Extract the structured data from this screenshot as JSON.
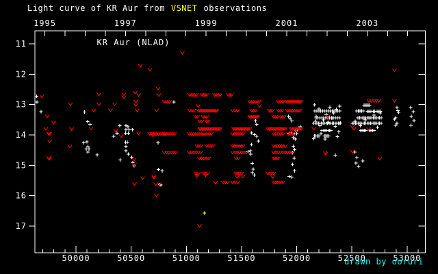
{
  "header": {
    "title_parts": [
      {
        "text": "Light curve of KR Aur from",
        "color": "#ffffff"
      },
      {
        "text": "VSNET",
        "color": "#ffff00"
      },
      {
        "text": "observations",
        "color": "#ffffff"
      }
    ]
  },
  "footer": {
    "credit": "drawn by ooruri",
    "color": "#00ffff"
  },
  "colors": {
    "background": "#000000",
    "frame": "#ffffff",
    "obs": "#ffffff",
    "limit": "#ff0000",
    "special": "#ffff00",
    "credit": "#00ffff"
  },
  "chart_data": {
    "type": "scatter",
    "label": "KR Aur (NLAD)",
    "x_axis": {
      "range": [
        49628,
        53165
      ],
      "bottom_major_ticks": [
        50000,
        50500,
        51000,
        51500,
        52000,
        52500,
        53000
      ],
      "bottom_tick_labels": [
        "50000",
        "50500",
        "51000",
        "51500",
        "52000",
        "52500",
        "53000"
      ],
      "bottom_minor_step": 100,
      "top_year_range": [
        1995,
        2004
      ],
      "top_year_tick_step": 0.5,
      "top_year_labels": [
        1995,
        1997,
        1999,
        2001,
        2003
      ],
      "jd_of_1995": 49718,
      "days_per_year": 365.25
    },
    "y_axis": {
      "ticks": [
        11,
        12,
        13,
        14,
        15,
        16,
        17
      ],
      "tick_labels": [
        "11",
        "12",
        "13",
        "14",
        "15",
        "16",
        "17"
      ],
      "range": [
        10.57,
        17.88
      ],
      "inverted": true
    },
    "series": [
      {
        "name": "positive observation",
        "marker": "plus",
        "color": "#ffffff",
        "points": [
          [
            49645,
            12.73
          ],
          [
            49648,
            12.92
          ],
          [
            49684,
            13.23
          ],
          [
            50070,
            14.26
          ],
          [
            50079,
            13.24
          ],
          [
            50093,
            14.46
          ],
          [
            50099,
            14.22
          ],
          [
            50104,
            13.56
          ],
          [
            50107,
            14.38
          ],
          [
            50107,
            14.56
          ],
          [
            50118,
            14.46
          ],
          [
            50128,
            13.65
          ],
          [
            50192,
            14.65
          ],
          [
            50341,
            14.05
          ],
          [
            50372,
            13.94
          ],
          [
            50397,
            13.69
          ],
          [
            50399,
            14.82
          ],
          [
            50451,
            13.94
          ],
          [
            50451,
            14.24
          ],
          [
            50454,
            13.69
          ],
          [
            50454,
            13.83
          ],
          [
            50454,
            14.37
          ],
          [
            50454,
            14.52
          ],
          [
            50465,
            14.24
          ],
          [
            50471,
            13.73
          ],
          [
            50475,
            13.94
          ],
          [
            50475,
            14.63
          ],
          [
            50479,
            13.83
          ],
          [
            50506,
            14.73
          ],
          [
            50513,
            13.83
          ],
          [
            50516,
            14.91
          ],
          [
            50526,
            15.01
          ],
          [
            50744,
            14.26
          ],
          [
            50748,
            15.14
          ],
          [
            50758,
            15.63
          ],
          [
            50770,
            15.65
          ],
          [
            50781,
            15.18
          ],
          [
            50886,
            12.92
          ],
          [
            51560,
            14.55
          ],
          [
            51581,
            14.52
          ],
          [
            51585,
            14.63
          ],
          [
            51591,
            13.93
          ],
          [
            51591,
            14.32
          ],
          [
            51595,
            14.94
          ],
          [
            51595,
            15.24
          ],
          [
            51606,
            15.13
          ],
          [
            51615,
            13.99
          ],
          [
            51615,
            15.32
          ],
          [
            51626,
            13.54
          ],
          [
            51636,
            13.65
          ],
          [
            51636,
            14.05
          ],
          [
            51651,
            14.2
          ],
          [
            51926,
            13.39
          ],
          [
            51932,
            13.94
          ],
          [
            51932,
            15.37
          ],
          [
            51940,
            13.45
          ],
          [
            51952,
            13.94
          ],
          [
            51955,
            15.39
          ],
          [
            51957,
            13.54
          ],
          [
            51961,
            14.59
          ],
          [
            51961,
            14.97
          ],
          [
            51967,
            14.09
          ],
          [
            51967,
            14.37
          ],
          [
            51977,
            13.95
          ],
          [
            51977,
            14.77
          ],
          [
            51982,
            14.48
          ],
          [
            51982,
            15.18
          ],
          [
            51988,
            14.14
          ],
          [
            51989,
            13.84
          ],
          [
            51998,
            13.95
          ],
          [
            52009,
            13.83
          ],
          [
            52030,
            13.73
          ],
          [
            52153,
            14.12
          ],
          [
            52160,
            13.01
          ],
          [
            52170,
            13.55
          ],
          [
            52175,
            13.39
          ],
          [
            52200,
            13.14
          ],
          [
            52210,
            13.7
          ],
          [
            52220,
            13.95
          ],
          [
            52240,
            13.5
          ],
          [
            52256,
            14.14
          ],
          [
            52265,
            13.33
          ],
          [
            52285,
            13.58
          ],
          [
            52300,
            13.08
          ],
          [
            52320,
            13.45
          ],
          [
            52335,
            13.28
          ],
          [
            52349,
            14.67
          ],
          [
            52350,
            13.72
          ],
          [
            52360,
            13.15
          ],
          [
            52368,
            14.06
          ],
          [
            52380,
            13.9
          ],
          [
            52390,
            13.05
          ],
          [
            52395,
            13.6
          ],
          [
            52525,
            14.56
          ],
          [
            52530,
            13.55
          ],
          [
            52535,
            14.93
          ],
          [
            52546,
            14.74
          ],
          [
            52560,
            15.04
          ],
          [
            52575,
            13.7
          ],
          [
            52597,
            14.86
          ],
          [
            52620,
            13.5
          ],
          [
            52700,
            13.35
          ],
          [
            52730,
            13.75
          ],
          [
            52755,
            13.28
          ],
          [
            52886,
            13.48
          ],
          [
            52896,
            13.43
          ],
          [
            52896,
            13.68
          ],
          [
            52907,
            13.1
          ],
          [
            52907,
            13.62
          ],
          [
            52917,
            13.2
          ],
          [
            52923,
            13.26
          ],
          [
            53031,
            13.1
          ],
          [
            53034,
            13.68
          ],
          [
            53037,
            13.39
          ],
          [
            53056,
            13.23
          ],
          [
            53062,
            13.53
          ]
        ],
        "runs": [
          [
            52165,
            52390,
            13.21,
            14
          ],
          [
            52175,
            52385,
            13.43,
            13
          ],
          [
            52155,
            52390,
            13.62,
            18
          ],
          [
            52230,
            52310,
            13.85,
            7
          ],
          [
            52160,
            52200,
            14.03,
            4
          ],
          [
            52250,
            52290,
            14.03,
            4
          ],
          [
            52610,
            52660,
            13.02,
            5
          ],
          [
            52545,
            52600,
            13.21,
            6
          ],
          [
            52640,
            52760,
            13.22,
            10
          ],
          [
            52555,
            52765,
            13.43,
            16
          ],
          [
            52504,
            52764,
            13.62,
            20
          ],
          [
            52580,
            52625,
            13.85,
            5
          ],
          [
            52660,
            52700,
            13.85,
            4
          ]
        ]
      },
      {
        "name": "fainter-than limit",
        "marker": "v",
        "color": "#ff0000",
        "points": [
          [
            49690,
            12.72
          ],
          [
            49727,
            13.8
          ],
          [
            49741,
            13.38
          ],
          [
            49752,
            13.95
          ],
          [
            49752,
            14.75
          ],
          [
            49757,
            14.78
          ],
          [
            49762,
            13.95
          ],
          [
            49762,
            14.2
          ],
          [
            49797,
            13.58
          ],
          [
            49943,
            14.37
          ],
          [
            49949,
            12.98
          ],
          [
            49959,
            13.8
          ],
          [
            50136,
            13.78
          ],
          [
            50161,
            13.19
          ],
          [
            50207,
            12.66
          ],
          [
            50207,
            12.98
          ],
          [
            50314,
            13.19
          ],
          [
            50351,
            12.98
          ],
          [
            50361,
            13.86
          ],
          [
            50409,
            14.03
          ],
          [
            50434,
            12.66
          ],
          [
            50434,
            12.76
          ],
          [
            50527,
            14.8
          ],
          [
            50531,
            14.97
          ],
          [
            50531,
            15.61
          ],
          [
            50537,
            12.6
          ],
          [
            50542,
            12.89
          ],
          [
            50542,
            13.01
          ],
          [
            50554,
            13.19
          ],
          [
            50568,
            12.68
          ],
          [
            50568,
            13.94
          ],
          [
            50583,
            11.72
          ],
          [
            50603,
            15.42
          ],
          [
            50670,
            11.85
          ],
          [
            50686,
            13.95
          ],
          [
            50699,
            14.01
          ],
          [
            50703,
            15.35
          ],
          [
            50707,
            15.4
          ],
          [
            50723,
            15.61
          ],
          [
            50727,
            15.99
          ],
          [
            50733,
            13.19
          ],
          [
            50744,
            12.47
          ],
          [
            50750,
            12.68
          ],
          [
            50755,
            15.61
          ],
          [
            50965,
            11.29
          ],
          [
            51093,
            15.33
          ],
          [
            51107,
            13.04
          ],
          [
            51120,
            16.99
          ],
          [
            51171,
            15.33
          ],
          [
            51264,
            15.57
          ],
          [
            51419,
            15.57
          ],
          [
            51461,
            15.38
          ],
          [
            51512,
            15.37
          ],
          [
            51660,
            13.04
          ],
          [
            51781,
            15.38
          ],
          [
            52153,
            13.78
          ],
          [
            52256,
            14.59
          ],
          [
            52263,
            14.62
          ],
          [
            52283,
            13.39
          ],
          [
            52504,
            13.73
          ],
          [
            52504,
            14.54
          ],
          [
            52520,
            13.78
          ],
          [
            52649,
            13.8
          ],
          [
            52752,
            14.78
          ],
          [
            52886,
            11.87
          ],
          [
            52886,
            12.87
          ]
        ],
        "runs": [
          [
            51030,
            51090,
            12.68,
            5
          ],
          [
            51140,
            51185,
            12.68,
            4
          ],
          [
            51255,
            51305,
            12.68,
            4
          ],
          [
            51380,
            51410,
            12.68,
            3
          ],
          [
            50800,
            50845,
            12.9,
            4
          ],
          [
            51574,
            51656,
            12.9,
            6
          ],
          [
            51833,
            51874,
            12.9,
            3
          ],
          [
            51902,
            52040,
            12.9,
            12
          ],
          [
            51033,
            51066,
            13.2,
            3
          ],
          [
            51110,
            51275,
            13.2,
            16
          ],
          [
            51420,
            51462,
            13.2,
            3
          ],
          [
            51593,
            51625,
            13.2,
            3
          ],
          [
            51750,
            51780,
            13.2,
            3
          ],
          [
            51835,
            51866,
            13.2,
            3
          ],
          [
            51915,
            52027,
            13.2,
            8
          ],
          [
            51085,
            51100,
            13.4,
            2
          ],
          [
            51153,
            51185,
            13.4,
            3
          ],
          [
            51574,
            51647,
            13.4,
            8
          ],
          [
            51793,
            51822,
            13.4,
            3
          ],
          [
            51855,
            51885,
            13.4,
            3
          ],
          [
            51122,
            51140,
            13.55,
            2
          ],
          [
            51185,
            51197,
            13.55,
            2
          ],
          [
            51122,
            51306,
            13.8,
            18
          ],
          [
            51430,
            51574,
            13.8,
            14
          ],
          [
            51740,
            51895,
            13.8,
            14
          ],
          [
            51947,
            52040,
            13.8,
            8
          ],
          [
            50671,
            50806,
            13.97,
            8
          ],
          [
            50800,
            50893,
            13.97,
            6
          ],
          [
            51027,
            51223,
            13.97,
            12
          ],
          [
            51420,
            51513,
            13.97,
            6
          ],
          [
            51791,
            51874,
            13.97,
            5
          ],
          [
            51926,
            51977,
            13.97,
            4
          ],
          [
            51097,
            51130,
            14.36,
            3
          ],
          [
            51184,
            51240,
            14.36,
            4
          ],
          [
            51420,
            51513,
            14.36,
            7
          ],
          [
            51791,
            51897,
            14.36,
            7
          ],
          [
            50800,
            50903,
            14.58,
            6
          ],
          [
            51027,
            51130,
            14.58,
            6
          ],
          [
            51420,
            51544,
            14.58,
            7
          ],
          [
            51791,
            51957,
            14.58,
            9
          ],
          [
            51120,
            51203,
            14.77,
            6
          ],
          [
            51451,
            51472,
            14.77,
            2
          ],
          [
            51791,
            51833,
            14.77,
            4
          ],
          [
            51090,
            51110,
            15.26,
            2
          ],
          [
            51160,
            51192,
            15.26,
            3
          ],
          [
            51451,
            51503,
            15.26,
            4
          ],
          [
            51740,
            51791,
            15.26,
            4
          ],
          [
            51333,
            51372,
            15.56,
            3
          ],
          [
            51420,
            51465,
            15.56,
            3
          ],
          [
            51791,
            51874,
            15.56,
            6
          ],
          [
            52655,
            52742,
            12.87,
            5
          ]
        ]
      },
      {
        "name": "special observation",
        "marker": "plus",
        "color": "#ffff00",
        "points": [
          [
            51161,
            16.57
          ]
        ],
        "runs": []
      }
    ]
  }
}
